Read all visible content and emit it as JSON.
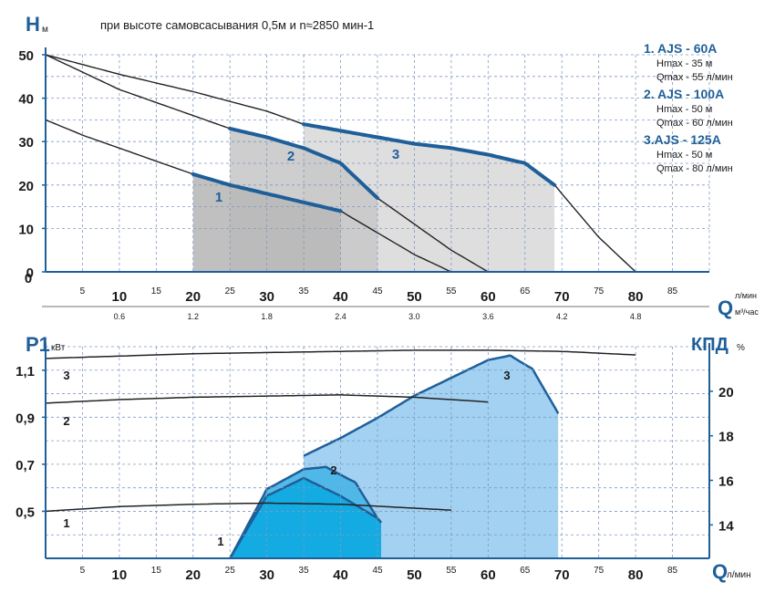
{
  "top_chart": {
    "y_axis_label": "H",
    "y_axis_unit": "м",
    "subtitle": "при высоте самовсасывания 0,5м и n≈2850 мин-1",
    "x_axis_label": "Q",
    "x_axis_unit_top": "л/мин",
    "x_axis_unit_bottom": "м³/час",
    "legend": [
      {
        "model": "1. AJS - 60A",
        "hmax": "Hmax - 35 м",
        "qmax": "Qmax - 55 л/мин"
      },
      {
        "model": "2. AJS - 100A",
        "hmax": "Hmax - 50 м",
        "qmax": "Qmax - 60 л/мин"
      },
      {
        "model": "3.AJS - 125A",
        "hmax": "Hmax - 50 м",
        "qmax": "Qmax - 80 л/мин"
      }
    ]
  },
  "bottom_chart": {
    "y_left_label": "P1",
    "y_left_unit": "кВт",
    "y_right_label": "КПД",
    "y_right_unit": "%",
    "x_axis_label": "Q",
    "x_axis_unit": "л/мин"
  },
  "colors": {
    "curve_blue": "#1f5f99",
    "curve_black": "#222222",
    "grid": "#7f9bbf",
    "zone_1": "#b9b9b9",
    "zone_2": "#c9c9c9",
    "zone_3": "#dadada",
    "eff_1": "#11a9e2",
    "eff_2": "#4cb6e8",
    "eff_3": "#9dcff0"
  },
  "chart_data": [
    {
      "type": "line",
      "title": "при высоте самовсасывания 0,5м и n≈2850 мин-1",
      "xlabel": "Q л/мин",
      "ylabel": "H м",
      "xlim": [
        0,
        90
      ],
      "ylim": [
        0,
        50
      ],
      "grid": true,
      "x_ticks_major": [
        "10",
        "20",
        "30",
        "40",
        "50",
        "60",
        "70",
        "80"
      ],
      "x_ticks_minor": [
        "5",
        "15",
        "25",
        "35",
        "45",
        "55",
        "65",
        "75",
        "85"
      ],
      "x_ticks_secondary": [
        {
          "q": 10,
          "label": "0.6"
        },
        {
          "q": 20,
          "label": "1.2"
        },
        {
          "q": 30,
          "label": "1.8"
        },
        {
          "q": 40,
          "label": "2.4"
        },
        {
          "q": 50,
          "label": "3.0"
        },
        {
          "q": 60,
          "label": "3.6"
        },
        {
          "q": 70,
          "label": "4.2"
        },
        {
          "q": 80,
          "label": "4.8"
        }
      ],
      "y_ticks": [
        "0",
        "10",
        "20",
        "30",
        "40",
        "50"
      ],
      "working_zones": [
        {
          "label": "1",
          "q_range": [
            20,
            40
          ],
          "h_top": 22.5
        },
        {
          "label": "2",
          "q_range": [
            25,
            45
          ],
          "h_top": 33
        },
        {
          "label": "3",
          "q_range": [
            35,
            69
          ],
          "h_top": 34
        }
      ],
      "series": [
        {
          "name": "1",
          "x": [
            0,
            5,
            10,
            15,
            20,
            25,
            30,
            35,
            40,
            45,
            50,
            55
          ],
          "y": [
            35,
            31.5,
            28.5,
            25.5,
            22.5,
            20,
            18,
            16,
            14,
            9,
            4,
            0
          ],
          "working_range": [
            20,
            40
          ]
        },
        {
          "name": "2",
          "x": [
            0,
            5,
            10,
            15,
            20,
            25,
            30,
            35,
            40,
            45,
            50,
            55,
            60
          ],
          "y": [
            50,
            46,
            42,
            39,
            36,
            33,
            31,
            28.5,
            25,
            17,
            11,
            5,
            0
          ],
          "working_range": [
            25,
            45
          ]
        },
        {
          "name": "3",
          "x": [
            0,
            10,
            20,
            30,
            35,
            40,
            45,
            50,
            55,
            60,
            65,
            69,
            75,
            80
          ],
          "y": [
            50,
            45.5,
            41.5,
            37,
            34,
            32.5,
            31,
            29.5,
            28.5,
            27,
            25,
            20,
            8,
            0
          ],
          "working_range": [
            35,
            69
          ]
        }
      ]
    },
    {
      "type": "line",
      "xlabel": "Q л/мин",
      "ylabel": "P1 кВт",
      "y2label": "КПД %",
      "xlim": [
        0,
        90
      ],
      "ylim": [
        0.3,
        1.2
      ],
      "y2lim": [
        12.5,
        22
      ],
      "grid": true,
      "x_ticks_major": [
        "10",
        "20",
        "30",
        "40",
        "50",
        "60",
        "70",
        "80"
      ],
      "x_ticks_minor": [
        "5",
        "15",
        "25",
        "35",
        "45",
        "55",
        "65",
        "75",
        "85"
      ],
      "y_ticks": [
        "0,5",
        "0,7",
        "0,9",
        "1,1"
      ],
      "y2_ticks": [
        "14",
        "16",
        "18",
        "20"
      ],
      "power_series": [
        {
          "name": "1",
          "x": [
            0,
            10,
            20,
            30,
            40,
            55
          ],
          "y": [
            0.5,
            0.52,
            0.53,
            0.535,
            0.53,
            0.505
          ]
        },
        {
          "name": "2",
          "x": [
            0,
            10,
            20,
            30,
            40,
            50,
            60
          ],
          "y": [
            0.96,
            0.975,
            0.985,
            0.99,
            0.995,
            0.985,
            0.965
          ]
        },
        {
          "name": "3",
          "x": [
            0,
            10,
            20,
            30,
            40,
            50,
            60,
            70,
            80
          ],
          "y": [
            1.15,
            1.16,
            1.17,
            1.175,
            1.18,
            1.185,
            1.185,
            1.18,
            1.165
          ]
        }
      ],
      "efficiency_series": [
        {
          "name": "1",
          "x": [
            25,
            30,
            35,
            40,
            45,
            45.5
          ],
          "y": [
            12.5,
            15.3,
            16.1,
            15.3,
            14.3,
            14.1
          ]
        },
        {
          "name": "2",
          "x": [
            25,
            30,
            35,
            38,
            42,
            45,
            45.5
          ],
          "y": [
            12.5,
            15.6,
            16.5,
            16.6,
            15.9,
            14.3,
            14.1
          ]
        },
        {
          "name": "3",
          "x": [
            35,
            40,
            45,
            50,
            55,
            60,
            63,
            66,
            69,
            69.5
          ],
          "y": [
            17.1,
            17.9,
            18.8,
            19.8,
            20.6,
            21.4,
            21.6,
            21,
            19.3,
            19.0
          ]
        }
      ]
    }
  ]
}
